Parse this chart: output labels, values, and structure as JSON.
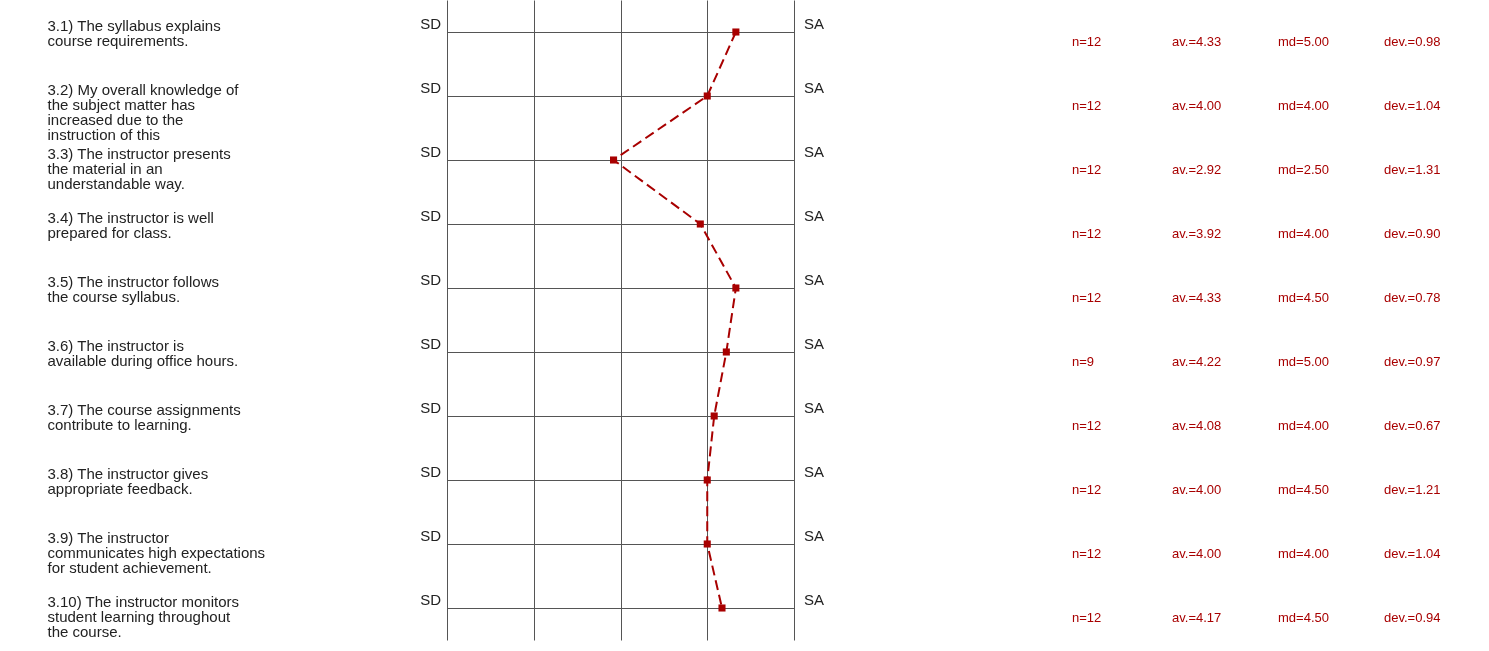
{
  "chart_data": {
    "type": "line",
    "orientation": "horizontal",
    "categories": [
      "3.1) The syllabus explains course requirements.",
      "3.2) My overall knowledge of the subject matter has increased due to the instruction of this",
      "3.3) The instructor presents the material in an understandable way.",
      "3.4) The instructor is well prepared for class.",
      "3.5) The instructor follows the course syllabus.",
      "3.6) The instructor is available during office hours.",
      "3.7) The course assignments contribute to learning.",
      "3.8) The instructor gives appropriate feedback.",
      "3.9) The instructor communicates high expectations for student achievement.",
      "3.10) The instructor monitors student learning throughout the course."
    ],
    "series": [
      {
        "color": "#a80000",
        "values": [
          4.33,
          4.0,
          2.92,
          3.92,
          4.33,
          4.22,
          4.08,
          4.0,
          4.0,
          4.17
        ],
        "value_labels": [
          "av.=4.33",
          "av.=4.00",
          "av.=2.92",
          "av.=3.92",
          "av.=4.33",
          "av.=4.22",
          "av.=4.08",
          "av.=4.00",
          "av.=4.00",
          "av.=4.17"
        ]
      }
    ],
    "xlim": [
      1,
      5
    ],
    "xticks": [
      {
        "value": 1,
        "label": null
      },
      {
        "value": 2,
        "label": null
      },
      {
        "value": 3,
        "label": null
      },
      {
        "value": 4,
        "label": null
      },
      {
        "value": 5,
        "label": null
      }
    ],
    "tick_labels": "y",
    "annotations": [
      "SD",
      "SA",
      "n=12",
      "md=5.00",
      "dev.=0.98",
      "SD",
      "SA",
      "n=12",
      "md=4.00",
      "dev.=1.04",
      "SD",
      "SA",
      "n=12",
      "md=2.50",
      "dev.=1.31",
      "SD",
      "SA",
      "n=12",
      "md=4.00",
      "dev.=0.90",
      "SD",
      "SA",
      "n=12",
      "md=4.50",
      "dev.=0.78",
      "SD",
      "SA",
      "n=9",
      "md=5.00",
      "dev.=0.97",
      "SD",
      "SA",
      "n=12",
      "md=4.00",
      "dev.=0.67",
      "SD",
      "SA",
      "n=12",
      "md=4.50",
      "dev.=1.21",
      "SD",
      "SA",
      "n=12",
      "md=4.00",
      "dev.=1.04",
      "SD",
      "SA",
      "n=12",
      "md=4.50",
      "dev.=0.94"
    ],
    "grid": true,
    "marker": "square",
    "line_style": "dashed"
  }
}
